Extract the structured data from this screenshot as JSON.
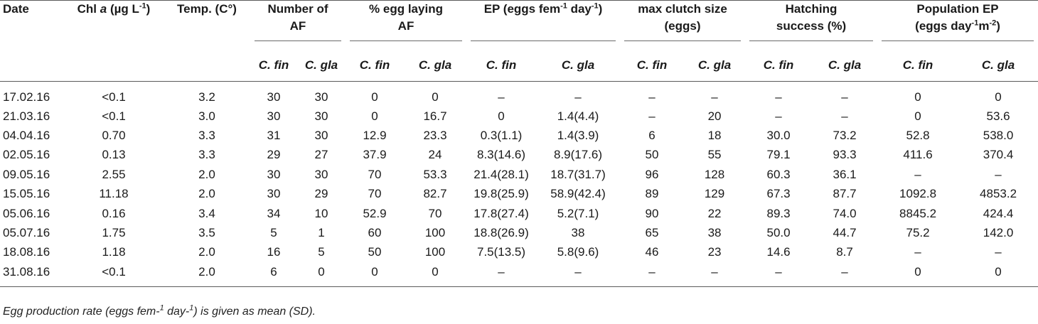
{
  "header": {
    "date": "Date",
    "chl_prefix": "Chl ",
    "chl_italic": "a",
    "chl_unit_pre": " (µg L",
    "chl_sup": "-1",
    "chl_unit_post": ")",
    "temp": "Temp. (C°)",
    "num_af_line1": "Number of",
    "num_af_line2": "AF",
    "egg_laying_line1": "% egg laying",
    "egg_laying_line2": "AF",
    "ep_pre": "EP (eggs fem",
    "ep_sup1": "-1",
    "ep_mid": " day",
    "ep_sup2": "-1",
    "ep_post": ")",
    "clutch_line1": "max clutch size",
    "clutch_line2": "(eggs)",
    "hatch_line1": "Hatching",
    "hatch_line2": "success (%)",
    "pop_line1": "Population EP",
    "pop_line2_pre": "(eggs day",
    "pop_sup1": "-1",
    "pop_line2_mid": "m",
    "pop_sup2": "-2",
    "pop_line2_post": ")",
    "sub_fin": "C. fin",
    "sub_gla": "C. gla"
  },
  "rows": [
    [
      "17.02.16",
      "<0.1",
      "3.2",
      "30",
      "30",
      "0",
      "0",
      "–",
      "–",
      "–",
      "–",
      "–",
      "–",
      "0",
      "0"
    ],
    [
      "21.03.16",
      "<0.1",
      "3.0",
      "30",
      "30",
      "0",
      "16.7",
      "0",
      "1.4(4.4)",
      "–",
      "20",
      "–",
      "–",
      "0",
      "53.6"
    ],
    [
      "04.04.16",
      "0.70",
      "3.3",
      "31",
      "30",
      "12.9",
      "23.3",
      "0.3(1.1)",
      "1.4(3.9)",
      "6",
      "18",
      "30.0",
      "73.2",
      "52.8",
      "538.0"
    ],
    [
      "02.05.16",
      "0.13",
      "3.3",
      "29",
      "27",
      "37.9",
      "24",
      "8.3(14.6)",
      "8.9(17.6)",
      "50",
      "55",
      "79.1",
      "93.3",
      "411.6",
      "370.4"
    ],
    [
      "09.05.16",
      "2.55",
      "2.0",
      "30",
      "30",
      "70",
      "53.3",
      "21.4(28.1)",
      "18.7(31.7)",
      "96",
      "128",
      "60.3",
      "36.1",
      "–",
      "–"
    ],
    [
      "15.05.16",
      "11.18",
      "2.0",
      "30",
      "29",
      "70",
      "82.7",
      "19.8(25.9)",
      "58.9(42.4)",
      "89",
      "129",
      "67.3",
      "87.7",
      "1092.8",
      "4853.2"
    ],
    [
      "05.06.16",
      "0.16",
      "3.4",
      "34",
      "10",
      "52.9",
      "70",
      "17.8(27.4)",
      "5.2(7.1)",
      "90",
      "22",
      "89.3",
      "74.0",
      "8845.2",
      "424.4"
    ],
    [
      "05.07.16",
      "1.75",
      "3.5",
      "5",
      "1",
      "60",
      "100",
      "18.8(26.9)",
      "38",
      "65",
      "38",
      "50.0",
      "44.7",
      "75.2",
      "142.0"
    ],
    [
      "18.08.16",
      "1.18",
      "2.0",
      "16",
      "5",
      "50",
      "100",
      "7.5(13.5)",
      "5.8(9.6)",
      "46",
      "23",
      "14.6",
      "8.7",
      "–",
      "–"
    ],
    [
      "31.08.16",
      "<0.1",
      "2.0",
      "6",
      "0",
      "0",
      "0",
      "–",
      "–",
      "–",
      "–",
      "–",
      "–",
      "0",
      "0"
    ]
  ],
  "footnote": {
    "pre": "Egg production rate (eggs fem-",
    "sup1": "1",
    "mid": " day-",
    "sup2": "1",
    "post": ") is given as mean (SD)."
  }
}
